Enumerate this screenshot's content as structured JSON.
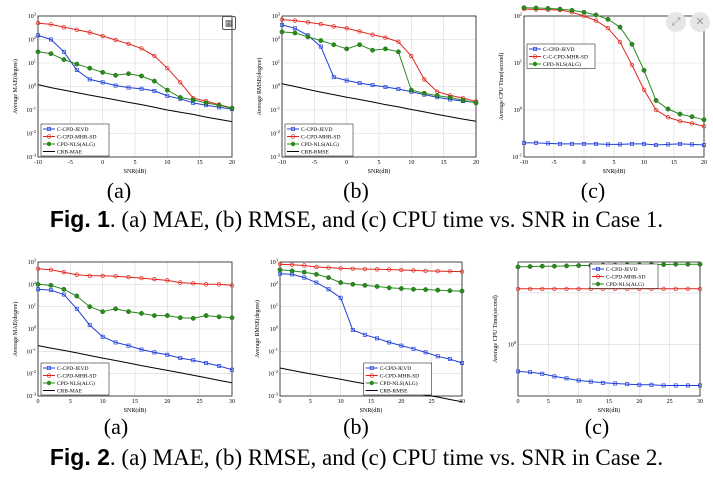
{
  "ui": {
    "zoom_icon": "grid-zoom-icon",
    "expand_icon": "expand-icon",
    "close_icon": "close-icon"
  },
  "figure1": {
    "caption_prefix": "Fig. 1",
    "caption_text": ". (a) MAE, (b) RMSE, and (c) CPU time vs. SNR in Case 1.",
    "labels": [
      "(a)",
      "(b)",
      "(c)"
    ]
  },
  "figure2": {
    "caption_prefix": "Fig. 2",
    "caption_text": ". (a) MAE, (b) RMSE, and (c) CPU time vs. SNR in Case 2.",
    "labels": [
      "(a)",
      "(b)",
      "(c)"
    ]
  },
  "chart_data": [
    {
      "id": "f1a",
      "type": "line",
      "y_scale": "log",
      "ylabel": "Average MAE(degree)",
      "xlabel": "SNR(dB)",
      "xlim": [
        -10,
        20
      ],
      "xticks": [
        -10,
        -5,
        0,
        5,
        10,
        15,
        20
      ],
      "ylim_exp": [
        -3,
        3
      ],
      "yticks": [
        "10^-3",
        "10^-2",
        "10^-1",
        "10^0",
        "10^1",
        "10^2",
        "10^3"
      ],
      "legend": "bottom-left",
      "x": [
        -10,
        -8,
        -6,
        -4,
        -2,
        0,
        2,
        4,
        6,
        8,
        10,
        12,
        14,
        16,
        18,
        20
      ],
      "series": [
        {
          "name": "C-CPD-JEVD",
          "color": "#1f3fd8",
          "marker": "square",
          "values": [
            150,
            100,
            30,
            5,
            2,
            1.5,
            1.1,
            0.9,
            0.8,
            0.65,
            0.4,
            0.3,
            0.2,
            0.16,
            0.13,
            0.11
          ]
        },
        {
          "name": "C-CPD-MHR-SD",
          "color": "#e0241b",
          "marker": "circle",
          "values": [
            500,
            440,
            330,
            260,
            200,
            140,
            95,
            65,
            42,
            20,
            6,
            1.5,
            0.32,
            0.24,
            0.17,
            0.12
          ]
        },
        {
          "name": "CPD-NLS(ALG)",
          "color": "#2a8a1e",
          "marker": "filled",
          "values": [
            30,
            25,
            14,
            9,
            6,
            4,
            3,
            3.5,
            2.8,
            1.7,
            0.7,
            0.34,
            0.27,
            0.2,
            0.16,
            0.12
          ]
        },
        {
          "name": "CRB-MAE",
          "color": "#000000",
          "marker": "none",
          "values": [
            1.2,
            0.9,
            0.7,
            0.55,
            0.43,
            0.34,
            0.27,
            0.21,
            0.17,
            0.13,
            0.1,
            0.08,
            0.065,
            0.05,
            0.04,
            0.032
          ]
        }
      ]
    },
    {
      "id": "f1b",
      "type": "line",
      "y_scale": "log",
      "ylabel": "Average RMSE(degree)",
      "xlabel": "SNR(dB)",
      "xlim": [
        -10,
        20
      ],
      "xticks": [
        -10,
        -5,
        0,
        5,
        10,
        15,
        20
      ],
      "ylim_exp": [
        -3,
        3
      ],
      "yticks": [
        "10^-3",
        "10^-2",
        "10^-1",
        "10^0",
        "10^1",
        "10^2",
        "10^3"
      ],
      "legend": "bottom-left",
      "x": [
        -10,
        -8,
        -6,
        -4,
        -2,
        0,
        2,
        4,
        6,
        8,
        10,
        12,
        14,
        16,
        18,
        20
      ],
      "series": [
        {
          "name": "C-CPD-JEVD",
          "color": "#1f3fd8",
          "marker": "square",
          "values": [
            420,
            300,
            150,
            50,
            2.5,
            1.8,
            1.4,
            1.15,
            0.95,
            0.78,
            0.6,
            0.45,
            0.35,
            0.28,
            0.24,
            0.21
          ]
        },
        {
          "name": "C-CPD-MHR-SD",
          "color": "#e0241b",
          "marker": "circle",
          "values": [
            700,
            640,
            540,
            450,
            360,
            300,
            220,
            160,
            120,
            80,
            20,
            2,
            0.6,
            0.42,
            0.32,
            0.23
          ]
        },
        {
          "name": "CPD-NLS(ALG)",
          "color": "#2a8a1e",
          "marker": "filled",
          "values": [
            210,
            190,
            130,
            90,
            60,
            40,
            60,
            35,
            40,
            30,
            0.7,
            0.52,
            0.41,
            0.34,
            0.26,
            0.2
          ]
        },
        {
          "name": "CRB-RMSE",
          "color": "#000000",
          "marker": "none",
          "values": [
            1.3,
            1.0,
            0.75,
            0.58,
            0.45,
            0.35,
            0.28,
            0.22,
            0.17,
            0.135,
            0.105,
            0.083,
            0.065,
            0.052,
            0.041,
            0.033
          ]
        }
      ]
    },
    {
      "id": "f1c",
      "type": "line",
      "y_scale": "log",
      "ylabel": "Average CPU Time(second)",
      "xlabel": "SNR(dB)",
      "xlim": [
        -10,
        20
      ],
      "xticks": [
        -10,
        -5,
        0,
        5,
        10,
        15,
        20
      ],
      "ylim_exp": [
        -1,
        2
      ],
      "yticks": [
        "10^-1",
        "10^0",
        "10^1",
        "10^2"
      ],
      "legend": "top-left",
      "x": [
        -10,
        -8,
        -6,
        -4,
        -2,
        0,
        2,
        4,
        6,
        8,
        10,
        12,
        14,
        16,
        18,
        20
      ],
      "series": [
        {
          "name": "C-CPD-JEVD",
          "color": "#1f3fd8",
          "marker": "square",
          "values": [
            0.2,
            0.2,
            0.195,
            0.19,
            0.19,
            0.19,
            0.19,
            0.185,
            0.185,
            0.19,
            0.19,
            0.18,
            0.185,
            0.19,
            0.185,
            0.18
          ]
        },
        {
          "name": "C-C-CPD-MHR-SD",
          "color": "#e0241b",
          "marker": "circle",
          "values": [
            140,
            138,
            136,
            134,
            120,
            100,
            80,
            55,
            28,
            9,
            2.7,
            1.0,
            0.7,
            0.58,
            0.52,
            0.45
          ]
        },
        {
          "name": "CPD-NLS(ALG)",
          "color": "#2a8a1e",
          "marker": "filled",
          "values": [
            150,
            148,
            145,
            140,
            132,
            120,
            105,
            85,
            58,
            25,
            7,
            1.6,
            1.05,
            0.82,
            0.72,
            0.62
          ]
        }
      ]
    },
    {
      "id": "f2a",
      "type": "line",
      "y_scale": "log",
      "ylabel": "Average MAE(degree)",
      "xlabel": "SNR(dB)",
      "xlim": [
        0,
        30
      ],
      "xticks": [
        0,
        5,
        10,
        15,
        20,
        25,
        30
      ],
      "ylim_exp": [
        -3,
        3
      ],
      "yticks": [
        "10^-3",
        "10^-2",
        "10^-1",
        "10^0",
        "10^1",
        "10^2",
        "10^3"
      ],
      "legend": "bottom-left",
      "x": [
        0,
        2,
        4,
        6,
        8,
        10,
        12,
        14,
        16,
        18,
        20,
        22,
        24,
        26,
        28,
        30
      ],
      "series": [
        {
          "name": "C-CPD-JEVD",
          "color": "#1f3fd8",
          "marker": "square",
          "values": [
            60,
            55,
            35,
            8,
            1.5,
            0.45,
            0.25,
            0.18,
            0.12,
            0.09,
            0.07,
            0.05,
            0.04,
            0.03,
            0.022,
            0.015
          ]
        },
        {
          "name": "C-CPD-MHR-SD",
          "color": "#e0241b",
          "marker": "circle",
          "values": [
            500,
            450,
            350,
            270,
            240,
            240,
            230,
            210,
            190,
            170,
            150,
            120,
            110,
            100,
            100,
            90
          ]
        },
        {
          "name": "CPD-NLS(ALG)",
          "color": "#2a8a1e",
          "marker": "filled",
          "values": [
            100,
            90,
            60,
            30,
            10,
            6,
            8,
            6,
            5,
            4,
            4,
            3.2,
            3,
            4,
            3.5,
            3.2
          ]
        },
        {
          "name": "CRB-MAE",
          "color": "#000000",
          "marker": "none",
          "values": [
            0.18,
            0.14,
            0.11,
            0.085,
            0.065,
            0.05,
            0.039,
            0.03,
            0.023,
            0.018,
            0.014,
            0.011,
            0.0085,
            0.0065,
            0.005,
            0.0039
          ]
        }
      ]
    },
    {
      "id": "f2b",
      "type": "line",
      "y_scale": "log",
      "ylabel": "Average RMSE(degree)",
      "xlabel": "SNR(dB)",
      "xlim": [
        0,
        30
      ],
      "xticks": [
        0,
        5,
        10,
        15,
        20,
        25,
        30
      ],
      "ylim_exp": [
        -3,
        3
      ],
      "yticks": [
        "10^-3",
        "10^-2",
        "10^-1",
        "10^0",
        "10^1",
        "10^2",
        "10^3"
      ],
      "legend": "bottom-right",
      "x": [
        0,
        2,
        4,
        6,
        8,
        10,
        12,
        14,
        16,
        18,
        20,
        22,
        24,
        26,
        28,
        30
      ],
      "series": [
        {
          "name": "C-CPD-JEVD",
          "color": "#1f3fd8",
          "marker": "square",
          "values": [
            300,
            280,
            200,
            120,
            60,
            25,
            0.9,
            0.55,
            0.38,
            0.25,
            0.18,
            0.13,
            0.09,
            0.06,
            0.045,
            0.03
          ]
        },
        {
          "name": "C-CPD-MHR-SD",
          "color": "#e0241b",
          "marker": "circle",
          "values": [
            800,
            750,
            700,
            600,
            560,
            520,
            500,
            480,
            470,
            460,
            440,
            420,
            400,
            390,
            380,
            370
          ]
        },
        {
          "name": "CPD-NLS(ALG)",
          "color": "#2a8a1e",
          "marker": "filled",
          "values": [
            450,
            400,
            350,
            280,
            200,
            120,
            100,
            90,
            80,
            70,
            65,
            60,
            58,
            55,
            52,
            50
          ]
        },
        {
          "name": "CRB-RMSE",
          "color": "#000000",
          "marker": "none",
          "values": [
            0.018,
            0.014,
            0.011,
            0.0088,
            0.007,
            0.0056,
            0.0044,
            0.0035,
            0.0028,
            0.0022,
            0.0018,
            0.0014,
            0.0011,
            0.0009,
            0.0007,
            0.00055
          ]
        }
      ]
    },
    {
      "id": "f2c",
      "type": "line",
      "y_scale": "log",
      "ylabel": "Average CPU Time(second)",
      "xlabel": "SNR(dB)",
      "xlim": [
        0,
        30
      ],
      "xticks": [
        0,
        5,
        10,
        15,
        20,
        25,
        30
      ],
      "ylim_exp": [
        -1,
        1.6
      ],
      "yticks": [
        "10^0"
      ],
      "legend": "top-right",
      "x": [
        0,
        2,
        4,
        6,
        8,
        10,
        12,
        14,
        16,
        18,
        20,
        22,
        24,
        26,
        28,
        30
      ],
      "series": [
        {
          "name": "C-CPD-JEVD",
          "color": "#1f3fd8",
          "marker": "square",
          "values": [
            0.3,
            0.29,
            0.27,
            0.24,
            0.22,
            0.2,
            0.19,
            0.18,
            0.175,
            0.17,
            0.165,
            0.165,
            0.16,
            0.16,
            0.16,
            0.16
          ]
        },
        {
          "name": "C-CPD-MHR-SD",
          "color": "#e0241b",
          "marker": "circle",
          "values": [
            12,
            12,
            12,
            12,
            12,
            12,
            12,
            12,
            12,
            12,
            12,
            12,
            12,
            12,
            12,
            12
          ]
        },
        {
          "name": "CPD-NLS(ALG)",
          "color": "#2a8a1e",
          "marker": "filled",
          "values": [
            32,
            32.5,
            33,
            33,
            33.5,
            34,
            34,
            34.5,
            34.5,
            35,
            35,
            35.5,
            35.5,
            36,
            36,
            36
          ]
        }
      ]
    }
  ]
}
